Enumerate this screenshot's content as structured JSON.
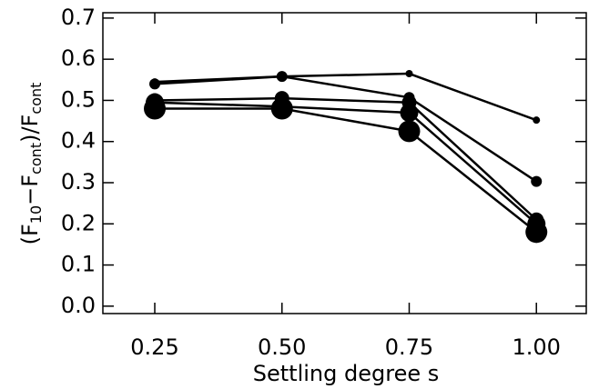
{
  "chart_data": {
    "type": "line",
    "xlabel": "Settling degree s",
    "ylabel": [
      "(F",
      "10",
      "−F",
      "cont",
      ")/F",
      "cont"
    ],
    "x": [
      0.25,
      0.5,
      0.75,
      1.0
    ],
    "series": [
      {
        "color": "#000000",
        "marker_size": 4,
        "values": [
          0.545,
          0.558,
          0.565,
          0.452
        ]
      },
      {
        "color": "#000000",
        "marker_size": 6,
        "values": [
          0.54,
          0.558,
          0.507,
          0.303
        ]
      },
      {
        "color": "#000000",
        "marker_size": 8,
        "values": [
          0.5,
          0.505,
          0.495,
          0.21
        ]
      },
      {
        "color": "#000000",
        "marker_size": 10,
        "values": [
          0.495,
          0.485,
          0.47,
          0.2
        ]
      },
      {
        "color": "#000000",
        "marker_size": 12,
        "values": [
          0.48,
          0.48,
          0.425,
          0.18
        ]
      }
    ],
    "xlim": [
      0.148,
      1.098
    ],
    "ylim": [
      -0.018,
      0.713
    ],
    "xticks": [
      0.25,
      {
        "value": 0.5,
        "label": "0.50"
      },
      0.75,
      {
        "value": 1.0,
        "label": "1.00"
      }
    ],
    "yticks": [
      {
        "value": 0,
        "label": "0.0"
      },
      0.1,
      0.2,
      0.3,
      0.4,
      0.5,
      0.6,
      0.7
    ],
    "grid": false
  }
}
